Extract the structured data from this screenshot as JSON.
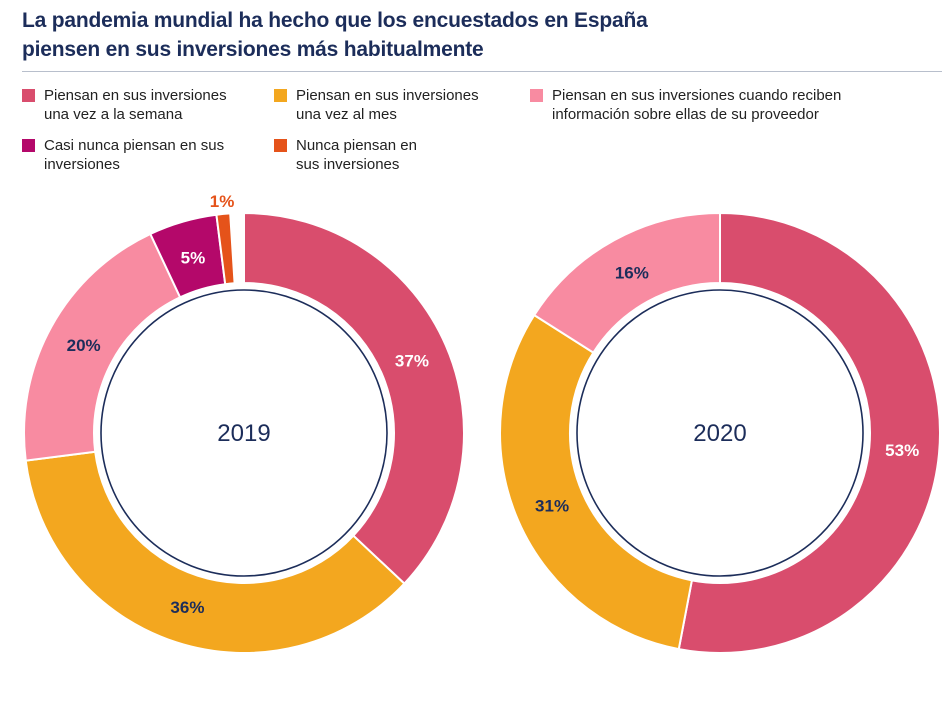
{
  "title_lines": [
    "La pandemia mundial ha hecho que los encuestados en España",
    "piensen en sus inversiones más habitualmente"
  ],
  "legend": [
    {
      "lines": [
        "Piensan en sus inversiones",
        "una vez a la semana"
      ],
      "color": "#d94d6d"
    },
    {
      "lines": [
        "Piensan en sus inversiones",
        "una vez al mes"
      ],
      "color": "#f3a71f"
    },
    {
      "lines": [
        "Piensan en sus inversiones cuando reciben",
        "información sobre ellas de su proveedor"
      ],
      "color": "#f88ba1"
    },
    {
      "lines": [
        "Casi nunca piensan en sus",
        "inversiones"
      ],
      "color": "#b4086a"
    },
    {
      "lines": [
        "Nunca piensan en",
        "sus inversiones"
      ],
      "color": "#e5531a"
    }
  ],
  "chart_data": [
    {
      "type": "pie",
      "donut": true,
      "center_label": "2019",
      "categories": [
        "Piensan en sus inversiones una vez a la semana",
        "Piensan en sus inversiones una vez al mes",
        "Piensan en sus inversiones cuando reciben información sobre ellas de su proveedor",
        "Casi nunca piensan en sus inversiones",
        "Nunca piensan en sus inversiones"
      ],
      "values": [
        37,
        36,
        20,
        5,
        1
      ],
      "labels": [
        "37%",
        "36%",
        "20%",
        "5%",
        "1%"
      ],
      "colors": [
        "#d94d6d",
        "#f3a71f",
        "#f88ba1",
        "#b4086a",
        "#e5531a"
      ],
      "label_colors": [
        "#ffffff",
        "#1c2d5a",
        "#1c2d5a",
        "#ffffff",
        "#e5531a"
      ]
    },
    {
      "type": "pie",
      "donut": true,
      "center_label": "2020",
      "categories": [
        "Piensan en sus inversiones una vez a la semana",
        "Piensan en sus inversiones una vez al mes",
        "Piensan en sus inversiones cuando reciben información sobre ellas de su proveedor"
      ],
      "values": [
        53,
        31,
        16
      ],
      "labels": [
        "53%",
        "31%",
        "16%"
      ],
      "colors": [
        "#d94d6d",
        "#f3a71f",
        "#f88ba1"
      ],
      "label_colors": [
        "#ffffff",
        "#1c2d5a",
        "#1c2d5a"
      ]
    }
  ],
  "colors": {
    "navy": "#1c2d5a"
  }
}
